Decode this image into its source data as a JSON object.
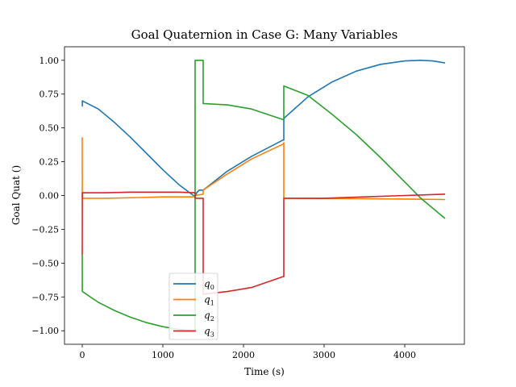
{
  "chart_data": {
    "type": "line",
    "title": "Goal Quaternion in Case G: Many Variables",
    "xlabel": "Time (s)",
    "ylabel": "Goal Quat ()",
    "xlim": [
      -220,
      4740
    ],
    "ylim": [
      -1.1,
      1.1
    ],
    "xticks": [
      0,
      1000,
      2000,
      3000,
      4000
    ],
    "yticks": [
      -1.0,
      -0.75,
      -0.5,
      -0.25,
      0.0,
      0.25,
      0.5,
      0.75,
      1.0
    ],
    "ytick_labels": [
      "−1.00",
      "−0.75",
      "−0.50",
      "−0.25",
      "0.00",
      "0.25",
      "0.50",
      "0.75",
      "1.00"
    ],
    "grid": false,
    "legend_position": "lower-center",
    "series": [
      {
        "name": "q",
        "sub": "0",
        "color": "#1f77b4",
        "x": [
          0,
          1,
          1,
          200,
          400,
          600,
          800,
          1000,
          1200,
          1380,
          1400,
          1420,
          1450,
          1500,
          1800,
          2100,
          2490,
          2500,
          2500,
          2800,
          3100,
          3400,
          3700,
          4000,
          4200,
          4350,
          4500
        ],
        "y": [
          0.66,
          0.66,
          0.7,
          0.64,
          0.54,
          0.43,
          0.31,
          0.19,
          0.08,
          0.0,
          -0.01,
          0.02,
          0.04,
          0.04,
          0.18,
          0.29,
          0.41,
          0.41,
          0.57,
          0.73,
          0.84,
          0.92,
          0.97,
          0.995,
          1.0,
          0.995,
          0.98
        ]
      },
      {
        "name": "q",
        "sub": "1",
        "color": "#ff7f0e",
        "x": [
          0,
          0,
          1,
          300,
          700,
          1000,
          1380,
          1400,
          1500,
          1500,
          1800,
          2100,
          2490,
          2500,
          2500,
          3000,
          3500,
          4000,
          4500
        ],
        "y": [
          0.43,
          0.43,
          -0.02,
          -0.02,
          -0.015,
          -0.01,
          -0.01,
          0.0,
          0.01,
          0.04,
          0.16,
          0.27,
          0.38,
          0.39,
          -0.02,
          -0.022,
          -0.024,
          -0.026,
          -0.03
        ]
      },
      {
        "name": "q",
        "sub": "2",
        "color": "#2ca02c",
        "x": [
          0,
          0,
          1,
          200,
          400,
          600,
          800,
          1000,
          1200,
          1399,
          1400,
          1400,
          1500,
          1500,
          1500,
          1800,
          2100,
          2500,
          2500,
          2500,
          2800,
          3100,
          3400,
          3700,
          4000,
          4200,
          4500
        ],
        "y": [
          -0.44,
          -0.44,
          -0.71,
          -0.79,
          -0.85,
          -0.9,
          -0.94,
          -0.97,
          -0.99,
          -1.0,
          -1.0,
          1.0,
          1.0,
          0.68,
          0.68,
          0.67,
          0.64,
          0.56,
          0.56,
          0.81,
          0.74,
          0.6,
          0.45,
          0.28,
          0.1,
          -0.02,
          -0.17
        ]
      },
      {
        "name": "q",
        "sub": "3",
        "color": "#d62728",
        "x": [
          0,
          0,
          1,
          300,
          600,
          900,
          1200,
          1390,
          1400,
          1400,
          1500,
          1500,
          1500,
          1800,
          2100,
          2490,
          2500,
          2500,
          3000,
          3500,
          4000,
          4500
        ],
        "y": [
          -0.44,
          -0.44,
          0.02,
          0.02,
          0.025,
          0.025,
          0.025,
          0.02,
          0.02,
          -0.02,
          -0.02,
          -0.73,
          -0.73,
          -0.71,
          -0.68,
          -0.6,
          -0.6,
          -0.02,
          -0.02,
          -0.01,
          0.0,
          0.01
        ]
      }
    ]
  }
}
